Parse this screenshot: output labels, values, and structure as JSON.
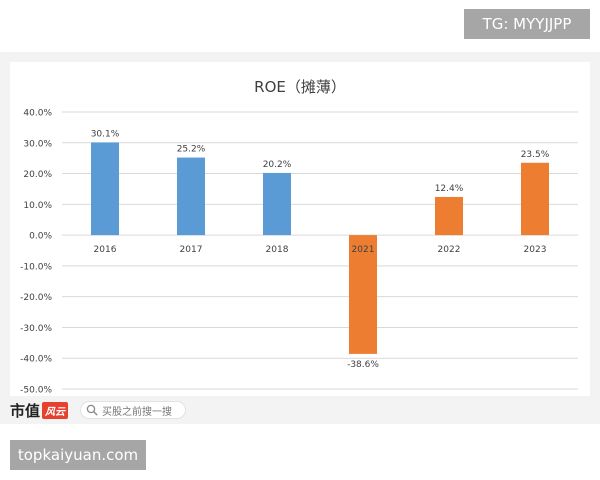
{
  "badges": {
    "telegram": "TG: MYYJJPP",
    "site": "topkaiyuan.com"
  },
  "footer": {
    "brand": "市值",
    "brand_mark": "风云",
    "search_placeholder": "买股之前搜一搜"
  },
  "colors": {
    "blue": "#5b9bd5",
    "orange": "#ed7d31",
    "grid": "#d9d9d9",
    "text": "#404040"
  },
  "chart_data": {
    "type": "bar",
    "title": "ROE（摊薄）",
    "categories": [
      "2016",
      "2017",
      "2018",
      "2021",
      "2022",
      "2023"
    ],
    "values": [
      30.1,
      25.2,
      20.2,
      -38.6,
      12.4,
      23.5
    ],
    "value_labels": [
      "30.1%",
      "25.2%",
      "20.2%",
      "-38.6%",
      "12.4%",
      "23.5%"
    ],
    "bar_colors": [
      "#5b9bd5",
      "#5b9bd5",
      "#5b9bd5",
      "#ed7d31",
      "#ed7d31",
      "#ed7d31"
    ],
    "ylim": [
      -50,
      40
    ],
    "yticks": [
      40,
      30,
      20,
      10,
      0,
      -10,
      -20,
      -30,
      -40,
      -50
    ],
    "ytick_labels": [
      "40.0%",
      "30.0%",
      "20.0%",
      "10.0%",
      "0.0%",
      "-10.0%",
      "-20.0%",
      "-30.0%",
      "-40.0%",
      "-50.0%"
    ],
    "grid": true,
    "legend": "none",
    "xlabel": "",
    "ylabel": ""
  }
}
